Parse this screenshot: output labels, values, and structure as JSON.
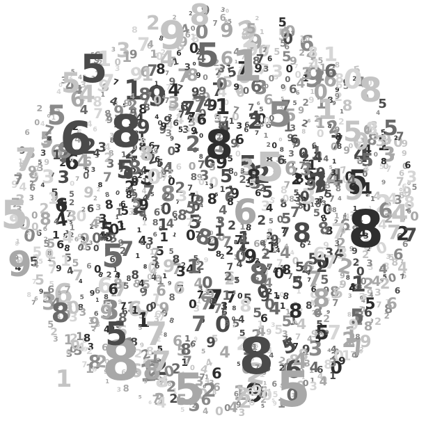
{
  "image": {
    "subject": "circle made of scattered numerals",
    "background_color": "#ffffff",
    "palette": [
      "#2e2e2e",
      "#4a4a4a",
      "#6a6a6a",
      "#8a8a8a",
      "#a8a8a8",
      "#c4c4c4",
      "#d6d6d6"
    ],
    "glyph_set": [
      "0",
      "1",
      "2",
      "3",
      "4",
      "5",
      "6",
      "7",
      "8",
      "9"
    ]
  }
}
